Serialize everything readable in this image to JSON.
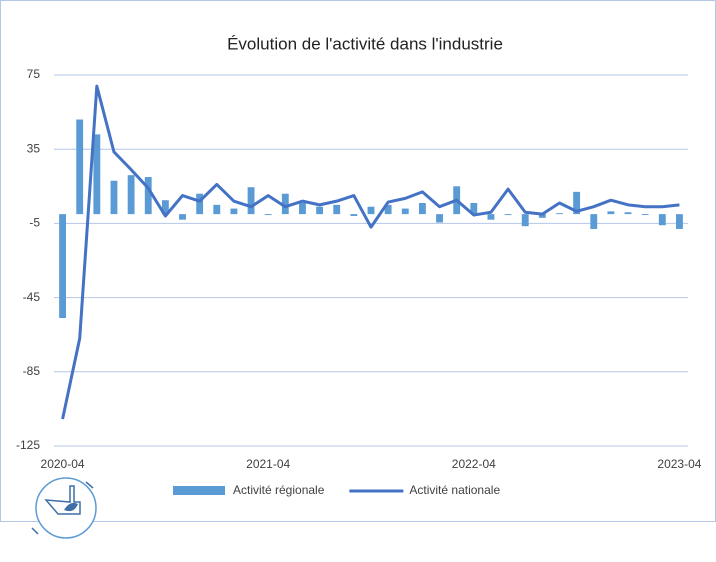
{
  "chart_data": {
    "type": "bar",
    "title": "Évolution de l'activité dans l'industrie",
    "categories": [
      "2020-04",
      null,
      null,
      null,
      null,
      null,
      null,
      null,
      null,
      null,
      null,
      null,
      "2021-04",
      null,
      null,
      null,
      null,
      null,
      null,
      null,
      null,
      null,
      null,
      null,
      "2022-04",
      null,
      null,
      null,
      null,
      null,
      null,
      null,
      null,
      null,
      null,
      null,
      "2023-04"
    ],
    "series": [
      {
        "name": "Activité régionale",
        "type": "bar",
        "color": "#5b9bd5",
        "values": [
          -56,
          51,
          43,
          18,
          21,
          20,
          7.5,
          -3,
          11,
          5,
          3,
          14.5,
          -0.5,
          11,
          6,
          4,
          5,
          -1,
          4,
          5,
          3,
          6,
          -4.5,
          15,
          6,
          -3,
          -0.5,
          -6.5,
          -2,
          0.5,
          12,
          -8,
          1.5,
          1,
          -0.5,
          -6,
          -8
        ]
      },
      {
        "name": "Activité nationale",
        "type": "line",
        "color": "#4472c4",
        "values": [
          -110.5,
          -67,
          69,
          33.5,
          24,
          14,
          -1,
          10,
          7,
          16,
          7,
          4,
          10,
          4,
          7,
          5,
          7,
          10,
          -7,
          6.5,
          8.5,
          12,
          4,
          7.5,
          -0.5,
          1,
          13.5,
          1,
          0,
          6,
          1.5,
          4,
          7.5,
          5,
          4,
          4,
          5
        ]
      }
    ],
    "ylim": [
      -125,
      75
    ],
    "yticks": [
      -125,
      -85,
      -45,
      -5,
      35,
      75
    ],
    "grid": true
  }
}
